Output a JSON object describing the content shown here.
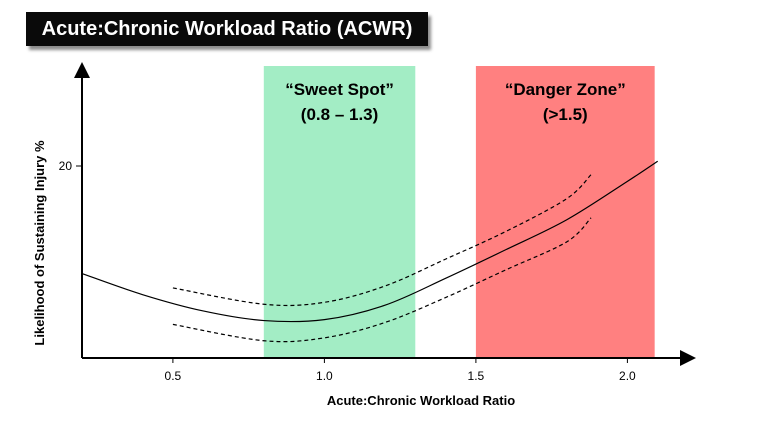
{
  "chart_data": {
    "type": "line",
    "title": "Acute:Chronic Workload Ratio (ACWR)",
    "xlabel": "Acute:Chronic Workload Ratio",
    "ylabel": "Likelihood of Sustaining Injury %",
    "x_ticks": [
      "0.5",
      "1.0",
      "1.5",
      "2.0"
    ],
    "y_ticks": [
      "20"
    ],
    "zones": [
      {
        "name": "sweet-spot",
        "line1": "“Sweet Spot”",
        "line2": "(0.8 – 1.3)",
        "x_range": [
          0.8,
          1.3
        ],
        "color": "#a3edc5"
      },
      {
        "name": "danger-zone",
        "line1": "“Danger Zone”",
        "line2": "(>1.5)",
        "x_range": [
          1.5,
          2.09
        ],
        "color": "#ff8080"
      }
    ],
    "series": [
      {
        "style": "solid",
        "x": [
          0.2,
          0.4,
          0.6,
          0.8,
          1.0,
          1.2,
          1.4,
          1.6,
          1.8,
          2.0,
          2.1
        ],
        "y": [
          8.8,
          6.6,
          4.9,
          3.9,
          4.0,
          5.5,
          8.3,
          11.3,
          14.4,
          18.4,
          20.5
        ]
      },
      {
        "style": "dashed",
        "x": [
          0.5,
          0.8,
          1.0,
          1.2,
          1.4,
          1.6,
          1.8,
          1.88
        ],
        "y": [
          7.3,
          5.6,
          5.8,
          7.5,
          10.3,
          13.2,
          16.6,
          19.1
        ]
      },
      {
        "style": "dashed",
        "x": [
          0.5,
          0.8,
          1.0,
          1.2,
          1.4,
          1.6,
          1.8,
          1.88
        ],
        "y": [
          3.5,
          1.8,
          2.1,
          3.7,
          6.3,
          9.2,
          12.1,
          14.6
        ]
      }
    ],
    "xlim": [
      0.2,
      2.2
    ],
    "ylim": [
      0,
      30
    ],
    "grid": false
  }
}
